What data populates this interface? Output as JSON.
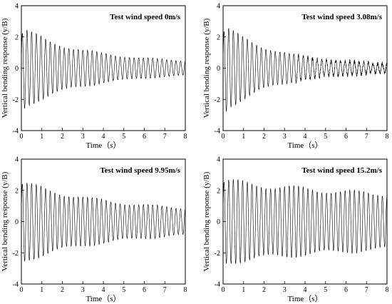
{
  "chart_data": [
    {
      "type": "line",
      "title": "Test wind speed 0m/s",
      "xlabel": "Time（s）",
      "ylabel": "Vertical bending response (y/B)",
      "xlim": [
        0,
        8
      ],
      "ylim": [
        -4,
        4
      ],
      "xticks": [
        "0",
        "1",
        "2",
        "3",
        "4",
        "5",
        "6",
        "7",
        "8"
      ],
      "yticks": [
        "-4",
        "-2",
        "0",
        "2",
        "4"
      ],
      "series": [
        {
          "frequency_hz": 4.4,
          "initial_amplitude": 2.5,
          "final_amplitude": 0.3,
          "offset": -0.3
        }
      ]
    },
    {
      "type": "line",
      "title": "Test wind speed 3.08m/s",
      "xlabel": "Time（s）",
      "ylabel": "Vertical bending response (y/B)",
      "xlim": [
        0,
        8
      ],
      "ylim": [
        -4,
        4
      ],
      "xticks": [
        "0",
        "1",
        "2",
        "3",
        "4",
        "5",
        "6",
        "7",
        "8"
      ],
      "yticks": [
        "-4",
        "-2",
        "0",
        "2",
        "4"
      ],
      "series": [
        {
          "frequency_hz": 4.4,
          "initial_amplitude": 2.7,
          "final_amplitude": 0.2,
          "offset": -0.4
        }
      ]
    },
    {
      "type": "line",
      "title": "Test wind speed 9.95m/s",
      "xlabel": "Time（s）",
      "ylabel": "Vertical bending response (y/B)",
      "xlim": [
        0,
        8
      ],
      "ylim": [
        -4,
        4
      ],
      "xticks": [
        "0",
        "1",
        "2",
        "3",
        "4",
        "5",
        "6",
        "7",
        "8"
      ],
      "yticks": [
        "-4",
        "-2",
        "0",
        "2",
        "4"
      ],
      "series": [
        {
          "frequency_hz": 4.4,
          "initial_amplitude": 2.5,
          "final_amplitude": 0.55,
          "offset": -0.1
        }
      ]
    },
    {
      "type": "line",
      "title": "Test wind speed 15.2m/s",
      "xlabel": "Time（s）",
      "ylabel": "Vertical bending response (y/B)",
      "xlim": [
        0,
        8
      ],
      "ylim": [
        -4,
        4
      ],
      "xticks": [
        "0",
        "1",
        "2",
        "3",
        "4",
        "5",
        "6",
        "7",
        "8"
      ],
      "yticks": [
        "-4",
        "-2",
        "0",
        "2",
        "4"
      ],
      "series": [
        {
          "frequency_hz": 4.4,
          "initial_amplitude": 2.6,
          "final_amplitude": 1.2,
          "offset": -0.1
        }
      ]
    }
  ]
}
